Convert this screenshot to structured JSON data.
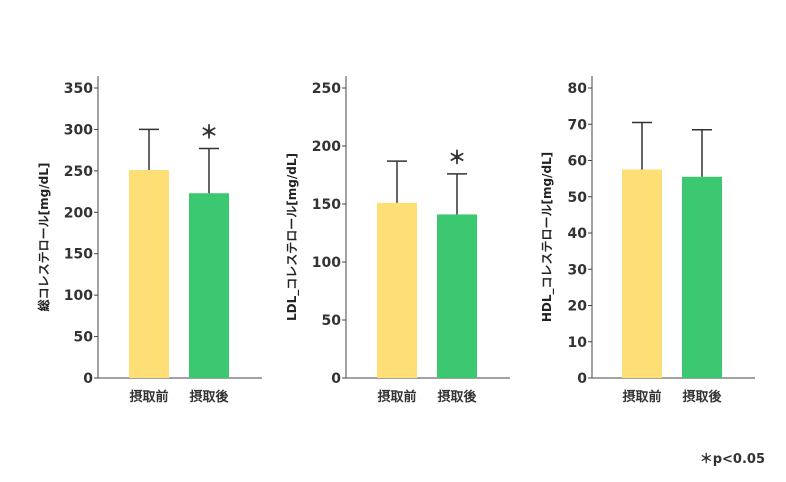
{
  "colors": {
    "before": "#fddf76",
    "after": "#3cc771",
    "axis": "#444444",
    "error_bar": "#333333"
  },
  "footnote": "＊p<0.05",
  "chart_data": [
    {
      "type": "bar",
      "ylabel": "総コレステロール[mg/dL]",
      "categories": [
        "摂取前",
        "摂取後"
      ],
      "values": [
        251,
        223
      ],
      "errors": [
        49,
        54
      ],
      "significance": [
        "",
        "＊"
      ],
      "ylim": [
        0,
        350
      ],
      "yticks": [
        0,
        50,
        100,
        150,
        200,
        250,
        300,
        350
      ],
      "grid": false
    },
    {
      "type": "bar",
      "ylabel": "LDL_コレステロール[mg/dL]",
      "categories": [
        "摂取前",
        "摂取後"
      ],
      "values": [
        151,
        141
      ],
      "errors": [
        36,
        35
      ],
      "significance": [
        "",
        "＊"
      ],
      "ylim": [
        0,
        250
      ],
      "yticks": [
        0,
        50,
        100,
        150,
        200,
        250
      ],
      "grid": false
    },
    {
      "type": "bar",
      "ylabel": "HDL_コレステロール[mg/dL]",
      "categories": [
        "摂取前",
        "摂取後"
      ],
      "values": [
        57.5,
        55.5
      ],
      "errors": [
        13,
        13
      ],
      "significance": [
        "",
        ""
      ],
      "ylim": [
        0,
        80
      ],
      "yticks": [
        0,
        10,
        20,
        30,
        40,
        50,
        60,
        70,
        80
      ],
      "grid": false
    }
  ]
}
